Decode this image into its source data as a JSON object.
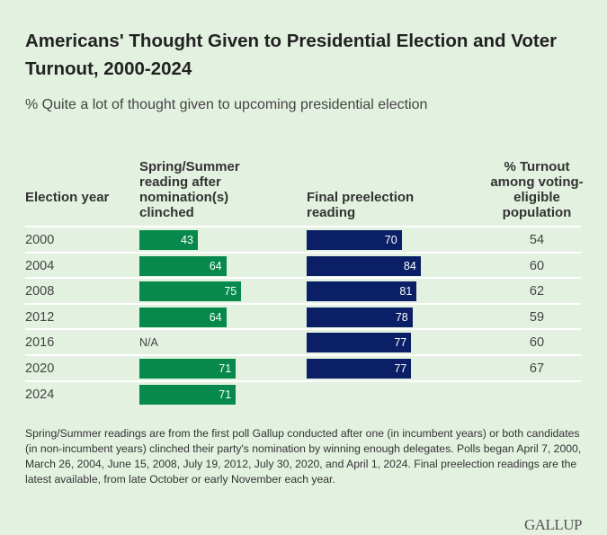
{
  "title": "Americans' Thought Given to Presidential Election and Voter Turnout, 2000-2024",
  "subtitle": "% Quite a lot of thought given to upcoming presidential election",
  "chart_data": {
    "type": "table",
    "columns": [
      "Election year",
      "Spring/Summer reading after nomination(s) clinched",
      "Final preelection reading",
      "% Turnout among voting-eligible population"
    ],
    "rows": [
      {
        "year": "2000",
        "spring": 43,
        "final": 70,
        "turnout": 54
      },
      {
        "year": "2004",
        "spring": 64,
        "final": 84,
        "turnout": 60
      },
      {
        "year": "2008",
        "spring": 75,
        "final": 81,
        "turnout": 62
      },
      {
        "year": "2012",
        "spring": 64,
        "final": 78,
        "turnout": 59
      },
      {
        "year": "2016",
        "spring": null,
        "spring_label": "N/A",
        "final": 77,
        "turnout": 60
      },
      {
        "year": "2020",
        "spring": 71,
        "final": 77,
        "turnout": 67
      },
      {
        "year": "2024",
        "spring": 71,
        "final": null,
        "turnout": null
      }
    ],
    "colors": {
      "spring": "#07894b",
      "final": "#0b1f66"
    }
  },
  "note": "Spring/Summer readings are from the first poll Gallup conducted after one (in incumbent years) or both candidates (in non-incumbent years) clinched their party's nomination by winning enough delegates. Polls began April 7, 2000, March 26, 2004, June 15, 2008, July 19, 2012, July 30, 2020, and April 1, 2024. Final preelection readings are the latest available, from late October or early November each year.",
  "logo": "GALLUP"
}
